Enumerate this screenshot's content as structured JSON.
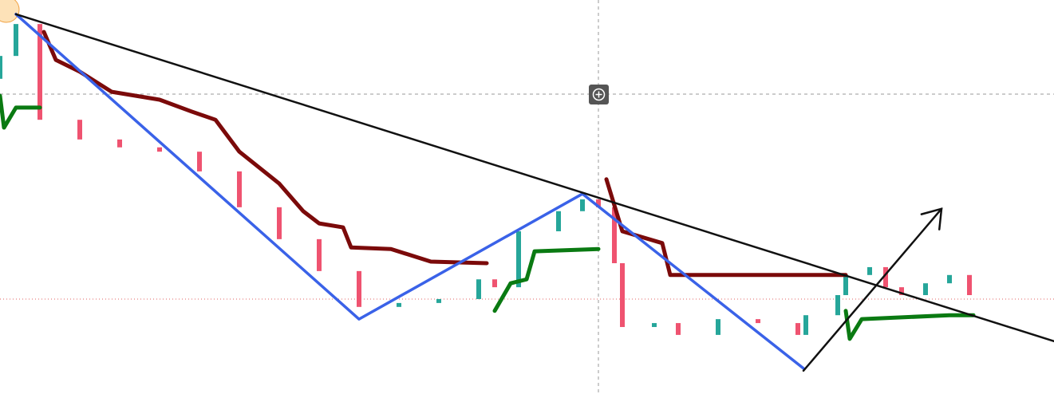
{
  "chart_data": {
    "type": "candlestick",
    "xlim": [
      0,
      132.1
    ],
    "ylim": [
      0,
      100
    ],
    "up_color": "#26a69a",
    "down_color": "#ef5370",
    "x": [
      0,
      2,
      5,
      10,
      15,
      20,
      25,
      30,
      35,
      40,
      45,
      50,
      55,
      60,
      62,
      65,
      70,
      73,
      75,
      77,
      78,
      82,
      85,
      90,
      95,
      100,
      101,
      105,
      106,
      109,
      111,
      113,
      116,
      119,
      121.5
    ],
    "open": [
      80,
      85.8,
      93.9,
      69.6,
      64.6,
      62.6,
      61.5,
      56.5,
      47.4,
      39.3,
      31.2,
      22.1,
      23.1,
      24.1,
      29.1,
      27.1,
      41.3,
      46.4,
      49.4,
      47.4,
      33.2,
      17.0,
      18.0,
      15.0,
      19.0,
      18.0,
      15.0,
      20.0,
      25.1,
      30.2,
      32.2,
      27.1,
      25.1,
      28.1,
      30.2
    ],
    "close": [
      85.8,
      93.9,
      69.6,
      64.6,
      62.6,
      61.5,
      56.5,
      47.4,
      39.3,
      31.2,
      22.1,
      23.1,
      24.1,
      29.1,
      27.1,
      41.3,
      46.4,
      49.4,
      47.4,
      33.2,
      17.0,
      18.0,
      15.0,
      19.0,
      18.0,
      15.0,
      20.0,
      25.1,
      30.2,
      32.2,
      27.1,
      25.1,
      28.1,
      30.2,
      25.1
    ],
    "lines": [
      {
        "color": "#7b0a0a",
        "width": 5,
        "x": [
          5.5,
          7,
          10,
          14,
          20,
          24,
          27,
          30,
          35,
          38,
          40,
          43,
          44,
          49,
          54,
          61,
          null,
          76,
          78,
          83,
          84,
          106
        ],
        "values": [
          91.9,
          84.8,
          81.8,
          76.7,
          74.7,
          71.7,
          69.6,
          61.5,
          53.4,
          46.4,
          43.3,
          42.3,
          37.2,
          36.8,
          33.6,
          33.2,
          null,
          54.5,
          41.3,
          38.3,
          30.2,
          30.2
        ]
      },
      {
        "color": "#0a7a12",
        "width": 5,
        "x": [
          0,
          0.5,
          2,
          5,
          null,
          62,
          64,
          66,
          67,
          75,
          null,
          106,
          106.5,
          108,
          119,
          122
        ],
        "values": [
          75.7,
          67.6,
          72.7,
          72.7,
          null,
          21.1,
          28.1,
          29.1,
          36.2,
          36.8,
          null,
          21.1,
          14.0,
          19.0,
          20.0,
          20.0
        ]
      },
      {
        "color": "#3a62e8",
        "width": 3.5,
        "x": [
          2,
          45,
          73,
          100.7
        ],
        "values": [
          96.4,
          19.0,
          50.8,
          6.5
        ]
      },
      {
        "color": "#111111",
        "width": 2.5,
        "x": [
          2,
          132.1
        ],
        "values": [
          96.4,
          13.4
        ]
      },
      {
        "color": "#111111",
        "width": 2.5,
        "arrow": true,
        "x": [
          100.7,
          118
        ],
        "values": [
          5.9,
          47.0
        ]
      }
    ]
  }
}
